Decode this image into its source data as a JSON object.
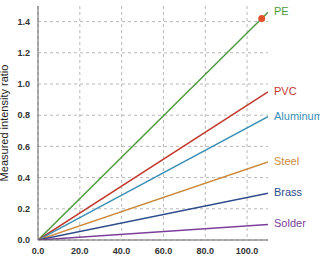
{
  "chart_data": {
    "type": "line",
    "y_label": "Measured intensity ratio",
    "x": [
      0,
      110
    ],
    "series": [
      {
        "name": "PE",
        "color": "#4e9a3c",
        "values": [
          0,
          1.46
        ]
      },
      {
        "name": "PVC",
        "color": "#c0392b",
        "values": [
          0,
          0.95
        ]
      },
      {
        "name": "Aluminum",
        "color": "#3a8fb5",
        "values": [
          0,
          0.79
        ]
      },
      {
        "name": "Steel",
        "color": "#cc8a3c",
        "values": [
          0,
          0.5
        ]
      },
      {
        "name": "Brass",
        "color": "#2d4a8a",
        "values": [
          0,
          0.3
        ]
      },
      {
        "name": "Solder",
        "color": "#7b3f9a",
        "values": [
          0,
          0.1
        ]
      }
    ],
    "highlight": {
      "x": 107,
      "y": 1.42,
      "color": "#e0502a"
    },
    "xlim": [
      0,
      110
    ],
    "xticks": [
      {
        "value": 0,
        "label": "0.0"
      },
      {
        "value": 20,
        "label": "20.0"
      },
      {
        "value": 40,
        "label": "40.0"
      },
      {
        "value": 60,
        "label": "60.0"
      },
      {
        "value": 80,
        "label": "80.0"
      },
      {
        "value": 100,
        "label": "100.0"
      }
    ],
    "ylim": [
      0,
      1.5
    ],
    "yticks": [
      {
        "value": 0,
        "label": "0.0"
      },
      0.2,
      0.4,
      0.6,
      0.8,
      {
        "value": 1,
        "label": "1.0"
      },
      1.2,
      1.4
    ],
    "grid": true
  }
}
